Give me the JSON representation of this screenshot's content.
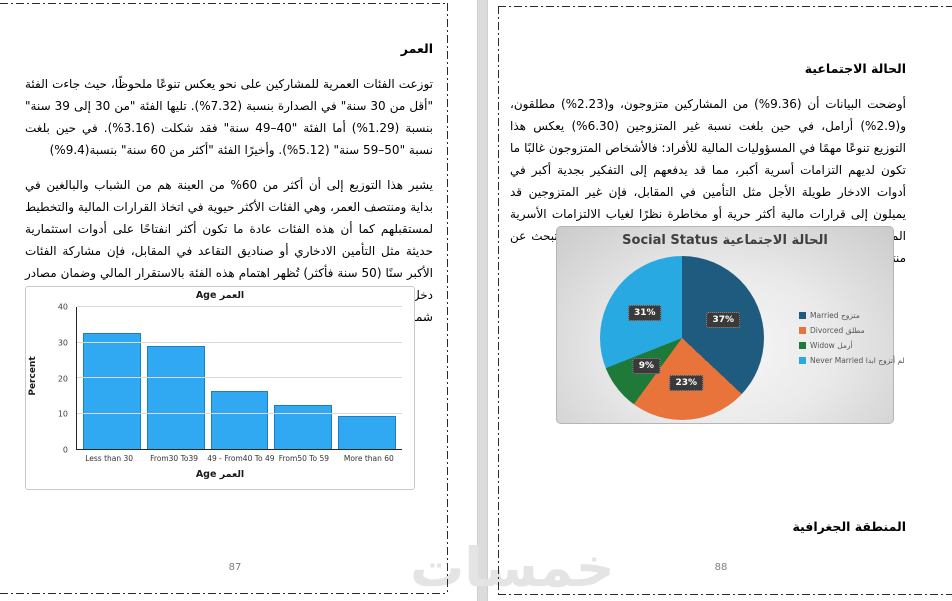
{
  "watermark_text": "خمسات",
  "pages": {
    "left": {
      "page_number": "87",
      "heading": "العمر",
      "paragraphs": [
        "توزعت الفئات العمرية للمشاركين على نحو يعكس تنوعًا ملحوظًا، حيث جاءت الفئة \"أقل من 30 سنة\" في الصدارة بنسبة (7.32%). تليها الفئة \"من 30 إلى 39 سنة\" بنسبة (1.29%)  أما الفئة \"40–49 سنة\" فقد شكلت (3.16%). في حين بلغت نسبة \"50–59 سنة\" (5.12%). وأخيرًا الفئة \"أكثر من 60 سنة\" بنسبة(9.4%)",
        "يشير هذا التوزيع إلى أن أكثر من 60% من العينة هم من الشباب والبالغين في بداية ومنتصف العمر، وهي الفئات الأكثر حيوية في اتخاذ القرارات المالية والتخطيط لمستقبلهم كما أن هذه الفئات عادة ما تكون أكثر انفتاحًا على أدوات استثمارية حديثة مثل التأمين الادخاري أو صناديق التقاعد في المقابل، فإن مشاركة الفئات الأكبر سنًا (50 سنة فأكثر) تُظهر اهتمام هذه الفئة بالاستقرار المالي وضمان مصادر دخل آمنة لما بعد التقاعد وبالتالي، فإن تنوع الفئات العمرية في العينة يعزز من شمولية النتائج وقابليتها للتطبيق على مختلف الشرائح السكانية"
      ]
    },
    "right": {
      "page_number": "88",
      "heading": "الحالة الاجتماعية",
      "paragraph": "أوضحت البيانات أن (9.36%) من المشاركين متزوجون، و(2.23%) مطلقون، و(2.9%) أرامل، في حين بلغت نسبة غير المتزوجين (6.30%)  يعكس هذا التوزيع تنوعًا مهمًا في المسؤوليات المالية للأفراد: فالأشخاص المتزوجون غالبًا ما تكون لديهم التزامات أسرية أكبر، مما قد يدفعهم إلى التفكير بجدية أكبر في أدوات الادخار طويلة الأجل مثل التأمين  في المقابل، فإن غير المتزوجين قد يميلون إلى قرارات مالية أكثر حرية أو مخاطرة نظرًا لغياب الالتزامات الأسرية المباشرة  أما فئة الأرامل والمطلقين، فقد تمثل شريحة حساسة ماليًا تبحث عن منتجات مالية توفر الأمان والاستقرار بعد فقدان أو انفصال الشريك",
      "next_section_heading": "المنطقة الجغرافية"
    }
  },
  "chart_data": [
    {
      "type": "bar",
      "title": "Age العمر",
      "categories": [
        "Less than 30",
        "From30 To39",
        "49 - From40 To 49",
        "From50  To 59",
        "More than 60"
      ],
      "values": [
        32.7,
        29.1,
        16.3,
        12.5,
        9.4
      ],
      "xlabel": "Age العمر",
      "ylabel": "Percent",
      "ylim": [
        0,
        40
      ],
      "yticks": [
        0,
        10,
        20,
        30,
        40
      ],
      "grid": true,
      "bar_color": "#31a9f2",
      "bar_border_color": "#1b7fc2"
    },
    {
      "type": "pie",
      "title": "Social Status الحالة الاجتماعية",
      "start_angle_deg": 0,
      "direction": "clockwise",
      "legend_position": "right",
      "data_label_style": "dark-box-percent",
      "slices": [
        {
          "label_en": "Married",
          "label_ar": "متزوج",
          "value": 37,
          "color": "#1f5b7e"
        },
        {
          "label_en": "Divorced",
          "label_ar": "مطلق",
          "value": 23,
          "color": "#e8743c"
        },
        {
          "label_en": "Widow",
          "label_ar": "أرمل",
          "value": 9,
          "color": "#1f7a39"
        },
        {
          "label_en": "Never Married",
          "label_ar": "لم أتزوج ابدا",
          "value": 31,
          "color": "#29a9e1"
        }
      ]
    }
  ]
}
